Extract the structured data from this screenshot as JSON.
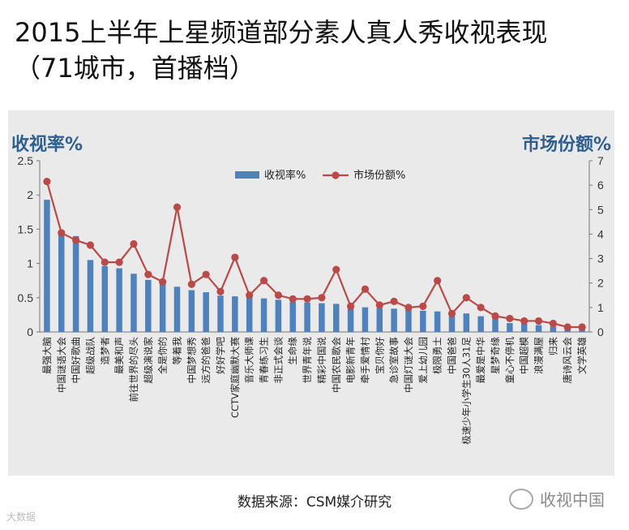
{
  "title_line1": "2015上半年上星频道部分素人真人秀收视表现",
  "title_line2": "（71城市，首播档）",
  "source": "数据来源：CSM媒介研究",
  "logo_text": "收视中国",
  "watermark": "大数据",
  "colors": {
    "bar": "#4f81bd",
    "line": "#b94a48",
    "axis_title": "#2f5f8f"
  },
  "chart_data": {
    "type": "bar",
    "left_axis_title": "收视率%",
    "right_axis_title": "市场份额%",
    "ylim": [
      0,
      2.5
    ],
    "y2lim": [
      0,
      7
    ],
    "y_ticks": [
      "0",
      "0.5",
      "1",
      "1.5",
      "2",
      "2.5"
    ],
    "y2_ticks": [
      "0",
      "1",
      "2",
      "3",
      "4",
      "5",
      "6",
      "7"
    ],
    "categories": [
      "最强大脑",
      "中国谜语大会",
      "中国好歌曲",
      "超级战队",
      "造梦者",
      "最美和声",
      "前往世界的尽头",
      "超级演说家",
      "全是你的",
      "等着我",
      "中国梦想秀",
      "远方的爸爸",
      "好好学吧",
      "CCTV家庭幽默大赛",
      "音乐大师课",
      "青春练习生",
      "非正式会谈",
      "生命缘",
      "世界青年说",
      "精彩中国说",
      "中国农民歌会",
      "电影新青年",
      "牵手爱情村",
      "宝贝你好",
      "急诊室故事",
      "中国灯谜大会",
      "爱上幼儿园",
      "极限勇士",
      "中国爸爸",
      "极速少年小学生30人31足",
      "最爱是中华",
      "星梦奇缘",
      "童心不停机",
      "中国超模",
      "浪漫满屋",
      "归来",
      "唐诗风云会",
      "文学英雄"
    ],
    "series": [
      {
        "name": "收视率%",
        "type": "bar",
        "values": [
          1.93,
          1.44,
          1.4,
          1.05,
          0.96,
          0.93,
          0.85,
          0.76,
          0.7,
          0.66,
          0.61,
          0.58,
          0.53,
          0.52,
          0.51,
          0.49,
          0.47,
          0.44,
          0.43,
          0.42,
          0.41,
          0.38,
          0.36,
          0.35,
          0.34,
          0.32,
          0.31,
          0.3,
          0.27,
          0.27,
          0.23,
          0.22,
          0.13,
          0.12,
          0.1,
          0.08,
          0.04,
          0.04
        ]
      },
      {
        "name": "市场份额%",
        "type": "line",
        "values": [
          6.15,
          4.05,
          3.75,
          3.55,
          2.85,
          2.85,
          3.6,
          2.35,
          2.05,
          5.1,
          1.95,
          2.35,
          1.65,
          3.05,
          1.5,
          2.1,
          1.5,
          1.35,
          1.35,
          1.4,
          2.55,
          1.05,
          1.75,
          1.1,
          1.25,
          1.0,
          1.05,
          2.1,
          0.75,
          1.4,
          1.0,
          0.65,
          0.55,
          0.45,
          0.45,
          0.35,
          0.2,
          0.2
        ]
      }
    ]
  }
}
